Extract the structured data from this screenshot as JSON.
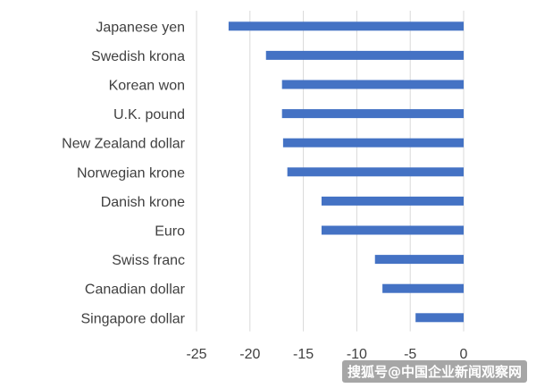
{
  "chart_data": {
    "type": "bar",
    "orientation": "horizontal",
    "title": "",
    "xlabel": "",
    "ylabel": "",
    "categories": [
      "Japanese yen",
      "Swedish krona",
      "Korean won",
      "U.K. pound",
      "New Zealand dollar",
      "Norwegian krone",
      "Danish krone",
      "Euro",
      "Swiss franc",
      "Canadian dollar",
      "Singapore dollar"
    ],
    "values": [
      -22.0,
      -18.5,
      -17.0,
      -17.0,
      -16.9,
      -16.5,
      -13.3,
      -13.3,
      -8.3,
      -7.6,
      -4.5
    ],
    "xlim": [
      -25,
      0
    ],
    "xticks": [
      -25,
      -20,
      -15,
      -10,
      -5,
      0
    ],
    "grid": true,
    "color": "#4472c4"
  },
  "watermark": "搜狐号@中国企业新闻观察网"
}
